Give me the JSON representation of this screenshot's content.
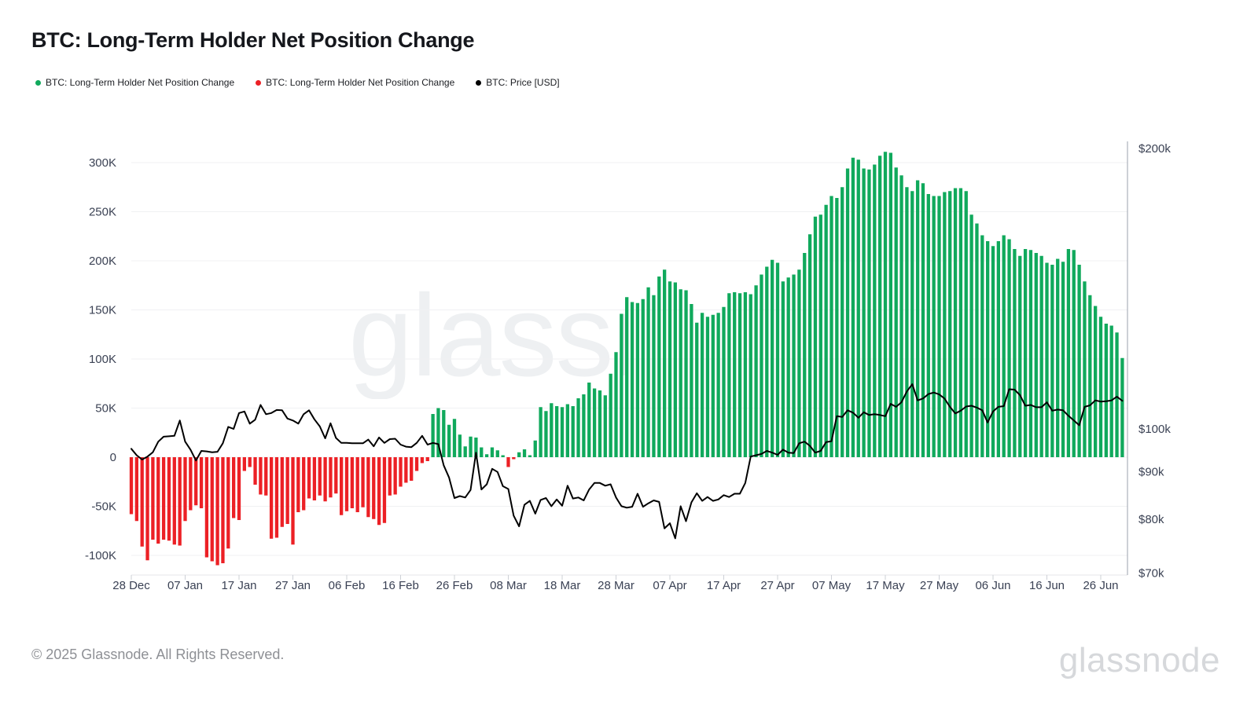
{
  "header": {
    "title": "BTC: Long-Term Holder Net Position Change"
  },
  "legend": {
    "items": [
      {
        "label": "BTC: Long-Term Holder Net Position Change",
        "color": "#10a95c"
      },
      {
        "label": "BTC: Long-Term Holder Net Position Change",
        "color": "#ec2025"
      },
      {
        "label": "BTC: Price [USD]",
        "color": "#000000"
      }
    ]
  },
  "watermark": {
    "text": "glassnode"
  },
  "footer": {
    "copyright": "© 2025 Glassnode. All Rights Reserved.",
    "logo": "glassnode"
  },
  "chart_data": {
    "type": "bar+line",
    "title": "BTC: Long-Term Holder Net Position Change",
    "start_date": "28 Dec 2024",
    "end_date": "30 Jun 2025",
    "grid": "horizontal",
    "x_tick_labels": [
      "28 Dec",
      "07 Jan",
      "17 Jan",
      "27 Jan",
      "06 Feb",
      "16 Feb",
      "26 Feb",
      "08 Mar",
      "18 Mar",
      "28 Mar",
      "07 Apr",
      "17 Apr",
      "27 Apr",
      "07 May",
      "17 May",
      "27 May",
      "06 Jun",
      "16 Jun",
      "26 Jun"
    ],
    "x_tick_day_indices": [
      0,
      10,
      20,
      30,
      40,
      50,
      60,
      70,
      80,
      90,
      100,
      110,
      120,
      130,
      140,
      150,
      160,
      170,
      180
    ],
    "left_axis": {
      "tick_labels": [
        "300K",
        "250K",
        "200K",
        "150K",
        "100K",
        "50K",
        "0",
        "-50K",
        "-100K"
      ],
      "tick_values_k": [
        300,
        250,
        200,
        150,
        100,
        50,
        0,
        -50,
        -100
      ],
      "scale": "linear"
    },
    "right_axis": {
      "tick_labels": [
        "$200k",
        "$100k",
        "$90k",
        "$80k",
        "$70k"
      ],
      "tick_values_usd": [
        200000,
        100000,
        90000,
        80000,
        70000
      ],
      "scale": "log"
    },
    "series": [
      {
        "name": "BTC: Long-Term Holder Net Position Change",
        "type": "bar",
        "unit": "BTC (thousands)",
        "positive_color": "#10a95c",
        "negative_color": "#ec2025",
        "values_k": [
          -58,
          -65,
          -91,
          -105,
          -84,
          -88,
          -84,
          -85,
          -89,
          -90,
          -65,
          -54,
          -49,
          -52,
          -102,
          -106,
          -110,
          -108,
          -93,
          -62,
          -64,
          -14,
          -10,
          -28,
          -38,
          -39,
          -83,
          -82,
          -71,
          -68,
          -89,
          -56,
          -54,
          -42,
          -44,
          -39,
          -45,
          -41,
          -37,
          -59,
          -55,
          -52,
          -56,
          -51,
          -61,
          -63,
          -69,
          -67,
          -39,
          -38,
          -30,
          -26,
          -24,
          -14,
          -6,
          -4,
          44,
          50,
          48,
          33,
          39,
          23,
          11,
          21,
          20,
          10,
          3,
          10,
          7,
          2,
          -10,
          -2,
          5,
          8,
          2,
          17,
          51,
          47,
          55,
          52,
          51,
          54,
          52,
          60,
          64,
          76,
          70,
          68,
          63,
          85,
          107,
          146,
          163,
          158,
          157,
          161,
          173,
          165,
          184,
          191,
          179,
          178,
          171,
          170,
          156,
          137,
          147,
          143,
          145,
          147,
          153,
          167,
          168,
          167,
          168,
          166,
          175,
          186,
          194,
          201,
          198,
          179,
          183,
          186,
          191,
          208,
          227,
          245,
          247,
          257,
          266,
          264,
          275,
          294,
          305,
          303,
          294,
          293,
          298,
          307,
          311,
          310,
          295,
          287,
          275,
          271,
          282,
          279,
          268,
          266,
          266,
          270,
          271,
          274,
          274,
          271,
          247,
          238,
          226,
          220,
          215,
          220,
          226,
          222,
          212,
          205,
          212,
          211,
          208,
          205,
          198,
          196,
          202,
          199,
          212,
          211,
          196,
          179,
          165,
          154,
          143,
          136,
          134,
          127,
          101
        ]
      },
      {
        "name": "BTC: Price [USD]",
        "type": "line",
        "color": "#000000",
        "values_usd": [
          95200,
          93700,
          92700,
          93400,
          94400,
          96900,
          98100,
          98200,
          98300,
          102100,
          96900,
          95000,
          92500,
          94700,
          94600,
          94400,
          94500,
          96500,
          100500,
          100000,
          104000,
          104400,
          101300,
          102300,
          106100,
          103700,
          104000,
          104800,
          104700,
          102600,
          102100,
          101300,
          103700,
          104700,
          102400,
          100600,
          97700,
          101400,
          97800,
          96600,
          96600,
          96500,
          96500,
          96500,
          97400,
          95800,
          97900,
          96600,
          97500,
          97600,
          96200,
          95700,
          95600,
          96600,
          98300,
          96200,
          96600,
          96300,
          91400,
          88700,
          84300,
          84700,
          84400,
          86000,
          94300,
          86100,
          87200,
          90600,
          89900,
          86800,
          86200,
          80700,
          78600,
          82900,
          83700,
          81100,
          83900,
          84300,
          82600,
          84000,
          82700,
          86900,
          84200,
          84400,
          83800,
          86100,
          87500,
          87500,
          86900,
          87200,
          84400,
          82600,
          82300,
          82500,
          85200,
          82500,
          83200,
          83800,
          83500,
          78200,
          79200,
          76300,
          82600,
          79600,
          83400,
          85300,
          83700,
          84500,
          83700,
          84000,
          84900,
          84500,
          85200,
          85200,
          87500,
          93400,
          93700,
          94000,
          94700,
          94300,
          93800,
          95000,
          94300,
          94200,
          96500,
          96900,
          95900,
          94300,
          94700,
          96800,
          97000,
          103200,
          103000,
          104700,
          104100,
          102800,
          104200,
          103500,
          103700,
          103500,
          103200,
          106400,
          105600,
          106800,
          109700,
          111700,
          107300,
          107800,
          109000,
          109400,
          108900,
          107800,
          105600,
          103900,
          104600,
          105700,
          105900,
          105400,
          104700,
          101600,
          104400,
          105600,
          105800,
          110300,
          110200,
          108700,
          105900,
          106100,
          105500,
          105500,
          106800,
          104600,
          104900,
          104700,
          103300,
          102100,
          100900,
          105600,
          106000,
          107300,
          107000,
          107100,
          107300,
          108300,
          107200
        ]
      }
    ]
  }
}
